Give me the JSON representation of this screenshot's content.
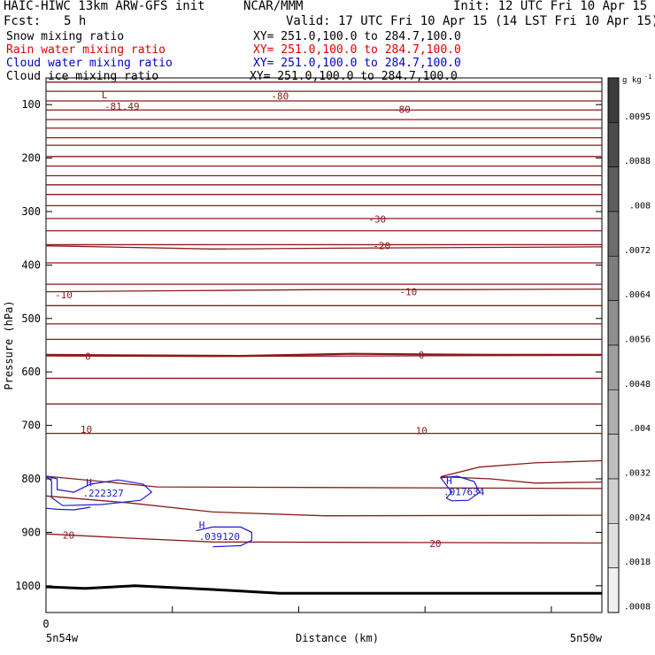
{
  "header": {
    "model": "HAIC-HIWC 13km ARW-GFS init",
    "org": "NCAR/MMM",
    "init": "Init: 12 UTC Fri 10 Apr 15",
    "fcst_label": "Fcst:",
    "fcst_value": "5 h",
    "valid": "Valid: 17 UTC Fri 10 Apr 15 (14 LST Fri 10 Apr 15)"
  },
  "fields": [
    {
      "name": "Snow mixing ratio",
      "xy": "XY= 251.0,100.0 to 284.7,100.0",
      "color": "#000000"
    },
    {
      "name": "Rain water mixing ratio",
      "xy": "XY= 251.0,100.0 to 284.7,100.0",
      "color": "#e00000"
    },
    {
      "name": "Cloud water mixing ratio",
      "xy": "XY= 251.0,100.0 to 284.7,100.0",
      "color": "#0000d0"
    },
    {
      "name": "Cloud ice mixing ratio",
      "xy": "XY= 251.0,100.0 to 284.7,100.0",
      "color": "#000000"
    }
  ],
  "chart_data": {
    "type": "line",
    "ylabel": "Pressure (hPa)",
    "xlabel": "Distance (km)",
    "y_axis_inverted": true,
    "ylim": [
      1050,
      50
    ],
    "yticks": [
      100,
      200,
      300,
      400,
      500,
      600,
      700,
      800,
      900,
      1000
    ],
    "xlim": [
      0,
      440
    ],
    "x_origin_label": "0",
    "x_left_label": "5n54w",
    "x_right_label": "5n50w",
    "isotherm_color": "#8b1a1a",
    "cloud_color": "#1a1ad0",
    "isotherms_C": [
      {
        "temp": -80,
        "label": "-80"
      },
      {
        "temp": -30,
        "label": "-30"
      },
      {
        "temp": -20,
        "label": "-20"
      },
      {
        "temp": -10,
        "label": "-10"
      },
      {
        "temp": 0,
        "label": "0"
      },
      {
        "temp": 10,
        "label": "10"
      },
      {
        "temp": 20,
        "label": "20"
      }
    ],
    "min_marker": {
      "label": "L",
      "value": "-81.49"
    },
    "cloud_water_maxima": [
      {
        "label": "H",
        "value": ".222327"
      },
      {
        "label": "H",
        "value": ".039120"
      },
      {
        "label": "H",
        "value": ".017634"
      }
    ],
    "colorbar": {
      "unit": "g kg",
      "unit_exp": "-1",
      "labels": [
        ".0095",
        ".0088",
        ".008",
        ".0072",
        ".0064",
        ".0056",
        ".0048",
        ".004",
        ".0032",
        ".0024",
        ".0018",
        ".0008"
      ]
    }
  }
}
